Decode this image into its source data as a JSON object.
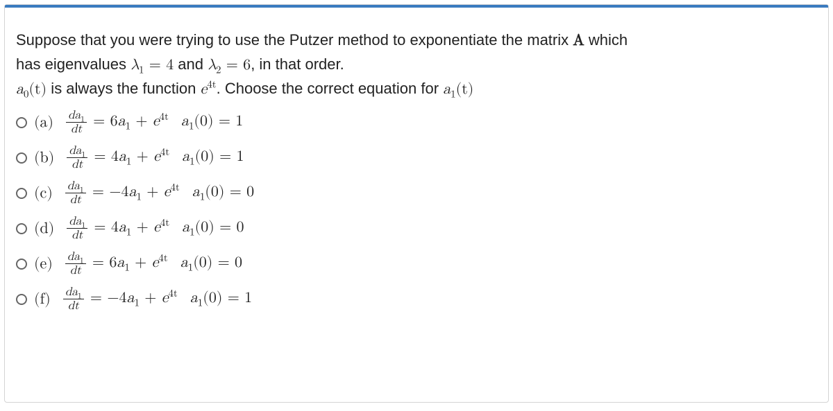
{
  "colors": {
    "accent": "#3a7bbf",
    "border": "#d4d4d4",
    "text": "#222222",
    "radio_border": "#666666",
    "background": "#ffffff"
  },
  "typography": {
    "body_fontsize": 22,
    "body_family": "Arial, Helvetica, sans-serif",
    "math_family": "Cambria Math, Latin Modern Math, STIX Two Math, Times New Roman, serif",
    "line_height": 1.55,
    "frac_small_fontsize": 17
  },
  "question": {
    "line1_pre": "Suppose that you were trying to use the Putzer method to exponentiate the matrix ",
    "matrix_symbol": "A",
    "line1_post": " which",
    "line2_pre": "has eigenvalues ",
    "lambda1_lhs": "λ",
    "lambda1_sub": "1",
    "eq_text": " = ",
    "lambda1_val": "4",
    "and_text": " and ",
    "lambda2_lhs": "λ",
    "lambda2_sub": "2",
    "lambda2_val": "6",
    "line2_post": ", in that order.",
    "line3_a0": "a",
    "line3_a0_sub": "0",
    "line3_a0_arg": "(t)",
    "line3_mid": " is always the function ",
    "line3_e": "e",
    "line3_e_sup": "4t",
    "line3_post": ". Choose the correct equation for ",
    "line3_a1": "a",
    "line3_a1_sub": "1",
    "line3_a1_arg": "(t)"
  },
  "frac": {
    "num_d": "d",
    "num_a": "a",
    "num_sub": "1",
    "den_d": "d",
    "den_t": "t"
  },
  "common": {
    "eq": " = ",
    "a": "a",
    "one": "1",
    "plus": " + ",
    "e": "e",
    "e_sup": "4t",
    "ic_lhs_a": "a",
    "ic_lhs_sub": "1",
    "ic_lhs_arg": "(0)",
    "ic_eq": " = "
  },
  "options": [
    {
      "letter": "(a)",
      "coeff": "6",
      "ic_val": "1"
    },
    {
      "letter": "(b)",
      "coeff": "4",
      "ic_val": "1"
    },
    {
      "letter": "(c)",
      "coeff": "−4",
      "ic_val": "0"
    },
    {
      "letter": "(d)",
      "coeff": "4",
      "ic_val": "0"
    },
    {
      "letter": "(e)",
      "coeff": "6",
      "ic_val": "0"
    },
    {
      "letter": "(f)",
      "coeff": "−4",
      "ic_val": "1"
    }
  ]
}
